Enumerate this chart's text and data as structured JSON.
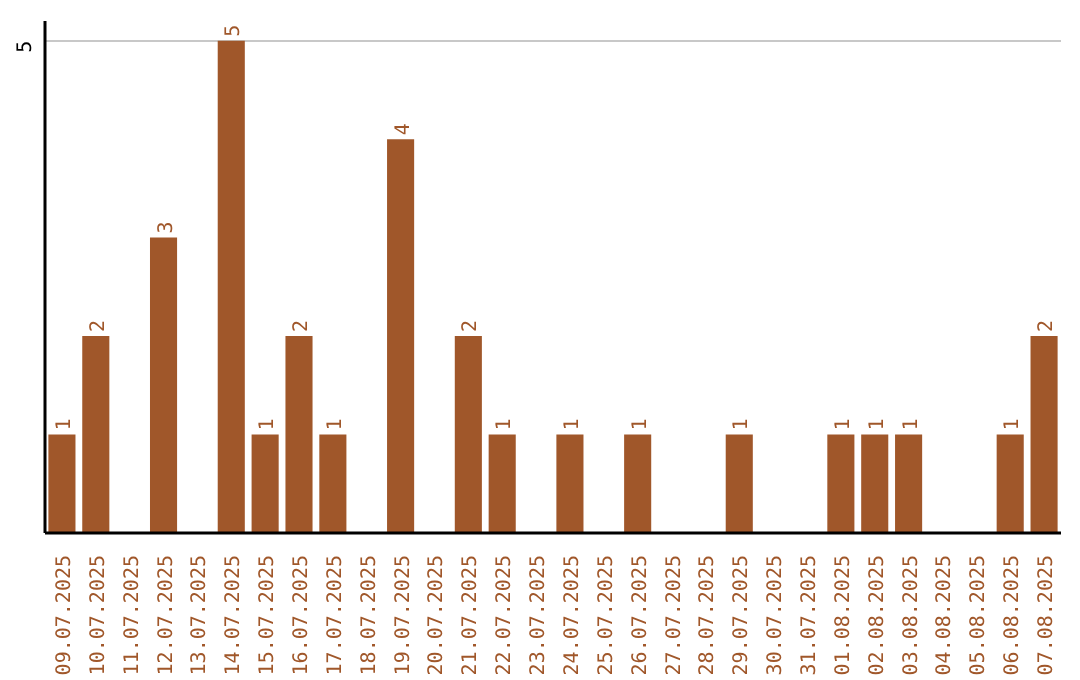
{
  "chart_data": {
    "type": "bar",
    "categories": [
      "09.07.2025",
      "10.07.2025",
      "11.07.2025",
      "12.07.2025",
      "13.07.2025",
      "14.07.2025",
      "15.07.2025",
      "16.07.2025",
      "17.07.2025",
      "18.07.2025",
      "19.07.2025",
      "20.07.2025",
      "21.07.2025",
      "22.07.2025",
      "23.07.2025",
      "24.07.2025",
      "25.07.2025",
      "26.07.2025",
      "27.07.2025",
      "28.07.2025",
      "29.07.2025",
      "30.07.2025",
      "31.07.2025",
      "01.08.2025",
      "02.08.2025",
      "03.08.2025",
      "04.08.2025",
      "05.08.2025",
      "06.08.2025",
      "07.08.2025"
    ],
    "values": [
      1,
      2,
      0,
      3,
      0,
      5,
      1,
      2,
      1,
      0,
      4,
      0,
      2,
      1,
      0,
      1,
      0,
      1,
      0,
      0,
      1,
      0,
      0,
      1,
      1,
      1,
      0,
      0,
      1,
      2
    ],
    "value_labels": [
      "1",
      "2",
      null,
      "3",
      null,
      "5",
      "1",
      "2",
      "1",
      null,
      "4",
      null,
      "2",
      "1",
      null,
      "1",
      null,
      "1",
      null,
      null,
      "1",
      null,
      null,
      "1",
      "1",
      "1",
      null,
      null,
      "1",
      "2"
    ],
    "color": "#a0572a",
    "ylim": [
      0,
      5.2
    ],
    "yticks": [
      5
    ],
    "grid": "y"
  }
}
